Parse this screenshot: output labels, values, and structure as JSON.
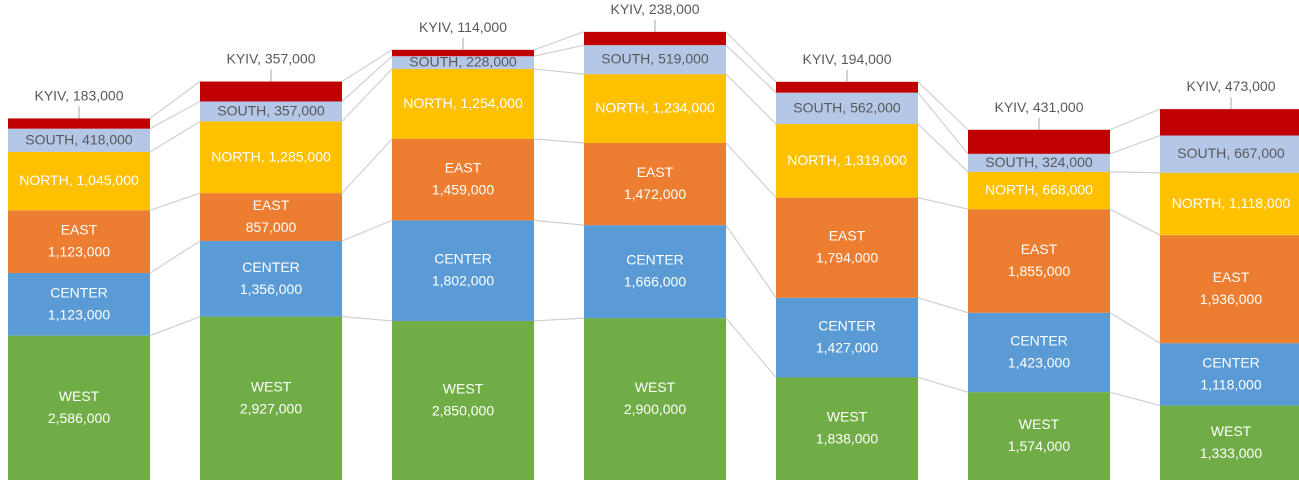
{
  "chart_data": {
    "type": "stacked_bar",
    "ylim": [
      0,
      8600000
    ],
    "series": [
      {
        "name": "WEST",
        "color": "#70ad47",
        "values": [
          2586000,
          2927000,
          2850000,
          2900000,
          1838000,
          1574000,
          1333000
        ],
        "value_labels": [
          "WEST\n2,586,000",
          "WEST\n2,927,000",
          "WEST\n2,850,000",
          "WEST\n2,900,000",
          "WEST\n1,838,000",
          "WEST\n1,574,000",
          "WEST\n1,333,000"
        ]
      },
      {
        "name": "CENTER",
        "color": "#5b9bd5",
        "values": [
          1123000,
          1356000,
          1802000,
          1666000,
          1427000,
          1423000,
          1118000
        ],
        "value_labels": [
          "CENTER\n1,123,000",
          "CENTER\n1,356,000",
          "CENTER\n1,802,000",
          "CENTER\n1,666,000",
          "CENTER\n1,427,000",
          "CENTER\n1,423,000",
          "CENTER\n1,118,000"
        ]
      },
      {
        "name": "EAST",
        "color": "#ed7d31",
        "values": [
          1123000,
          857000,
          1459000,
          1472000,
          1794000,
          1855000,
          1936000
        ],
        "value_labels": [
          "EAST\n1,123,000",
          "EAST\n857,000",
          "EAST\n1,459,000",
          "EAST\n1,472,000",
          "EAST\n1,794,000",
          "EAST\n1,855,000",
          "EAST\n1,936,000"
        ]
      },
      {
        "name": "NORTH",
        "color": "#ffc000",
        "values": [
          1045000,
          1285000,
          1254000,
          1234000,
          1319000,
          668000,
          1118000
        ],
        "value_labels": [
          "NORTH, 1,045,000",
          "NORTH, 1,285,000",
          "NORTH, 1,254,000",
          "NORTH, 1,234,000",
          "NORTH, 1,319,000",
          "NORTH, 668,000",
          "NORTH, 1,118,000"
        ]
      },
      {
        "name": "SOUTH",
        "color": "#b4c7e7",
        "values": [
          418000,
          357000,
          228000,
          519000,
          562000,
          324000,
          667000
        ],
        "value_labels": [
          "SOUTH, 418,000",
          "SOUTH, 357,000",
          "SOUTH, 228,000",
          "SOUTH, 519,000",
          "SOUTH, 562,000",
          "SOUTH, 324,000",
          "SOUTH, 667,000"
        ]
      },
      {
        "name": "KYIV",
        "color": "#c00000",
        "values": [
          183000,
          357000,
          114000,
          238000,
          194000,
          431000,
          473000
        ],
        "value_labels": [
          "KYIV, 183,000",
          "KYIV, 357,000",
          "KYIV, 114,000",
          "KYIV, 238,000",
          "KYIV, 194,000",
          "KYIV, 431,000",
          "KYIV, 473,000"
        ]
      }
    ]
  }
}
